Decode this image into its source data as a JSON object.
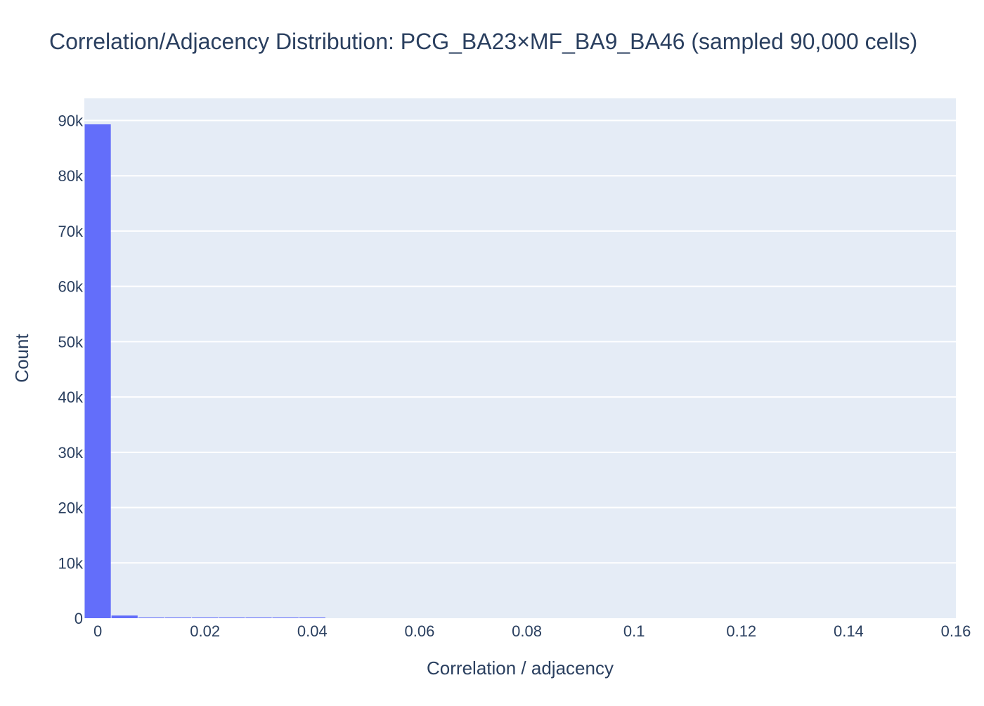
{
  "chart_data": {
    "type": "bar",
    "title": "Correlation/Adjacency Distribution: PCG_BA23×MF_BA9_BA46 (sampled 90,000 cells)",
    "xlabel": "Correlation / adjacency",
    "ylabel": "Count",
    "xlim": [
      -0.0025,
      0.16
    ],
    "ylim": [
      0,
      94000
    ],
    "x_ticks": [
      {
        "value": 0,
        "label": "0"
      },
      {
        "value": 0.02,
        "label": "0.02"
      },
      {
        "value": 0.04,
        "label": "0.04"
      },
      {
        "value": 0.06,
        "label": "0.06"
      },
      {
        "value": 0.08,
        "label": "0.08"
      },
      {
        "value": 0.1,
        "label": "0.1"
      },
      {
        "value": 0.12,
        "label": "0.12"
      },
      {
        "value": 0.14,
        "label": "0.14"
      },
      {
        "value": 0.16,
        "label": "0.16"
      }
    ],
    "y_ticks": [
      {
        "value": 0,
        "label": "0"
      },
      {
        "value": 10000,
        "label": "10k"
      },
      {
        "value": 20000,
        "label": "20k"
      },
      {
        "value": 30000,
        "label": "30k"
      },
      {
        "value": 40000,
        "label": "40k"
      },
      {
        "value": 50000,
        "label": "50k"
      },
      {
        "value": 60000,
        "label": "60k"
      },
      {
        "value": 70000,
        "label": "70k"
      },
      {
        "value": 80000,
        "label": "80k"
      },
      {
        "value": 90000,
        "label": "90k"
      }
    ],
    "bins": [
      {
        "x0": -0.0025,
        "x1": 0.0025,
        "count": 89300
      },
      {
        "x0": 0.0025,
        "x1": 0.0075,
        "count": 480
      },
      {
        "x0": 0.0075,
        "x1": 0.0125,
        "count": 120
      },
      {
        "x0": 0.0125,
        "x1": 0.0175,
        "count": 50
      },
      {
        "x0": 0.0175,
        "x1": 0.0225,
        "count": 25
      },
      {
        "x0": 0.0225,
        "x1": 0.0275,
        "count": 12
      },
      {
        "x0": 0.0275,
        "x1": 0.0325,
        "count": 8
      },
      {
        "x0": 0.0325,
        "x1": 0.0375,
        "count": 3
      },
      {
        "x0": 0.0375,
        "x1": 0.0425,
        "count": 2
      }
    ],
    "grid": true,
    "colors": {
      "bar": "#636efa",
      "plot_bg": "#e5ecf6",
      "grid": "#ffffff",
      "text": "#2a3f5f"
    }
  }
}
